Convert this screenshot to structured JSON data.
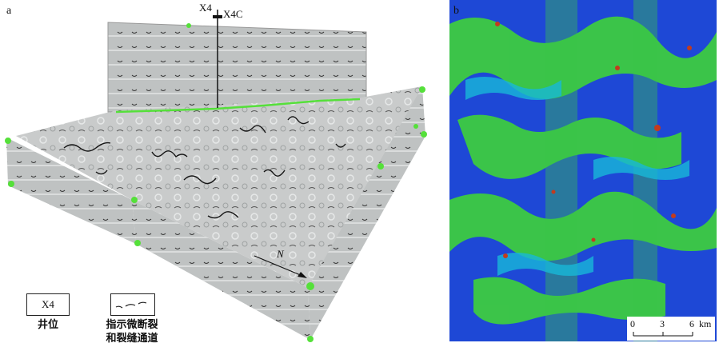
{
  "panel_a": {
    "label": "a",
    "wells": [
      "X4",
      "X4C"
    ],
    "north": "N"
  },
  "panel_b": {
    "label": "b",
    "scale": {
      "ticks": [
        "0",
        "3",
        "6"
      ],
      "unit": "km"
    }
  },
  "legend": {
    "well_box_text": "X4",
    "well_caption": "井位",
    "fracture_caption_line1": "指示微断裂",
    "fracture_caption_line2": "和裂缝通道"
  },
  "colors": {
    "horizon": "#55e03a",
    "map_base": "#1e48d6",
    "map_green": "#3fd23a",
    "map_cyan": "#18b8d8",
    "map_red": "#c23b1e"
  }
}
